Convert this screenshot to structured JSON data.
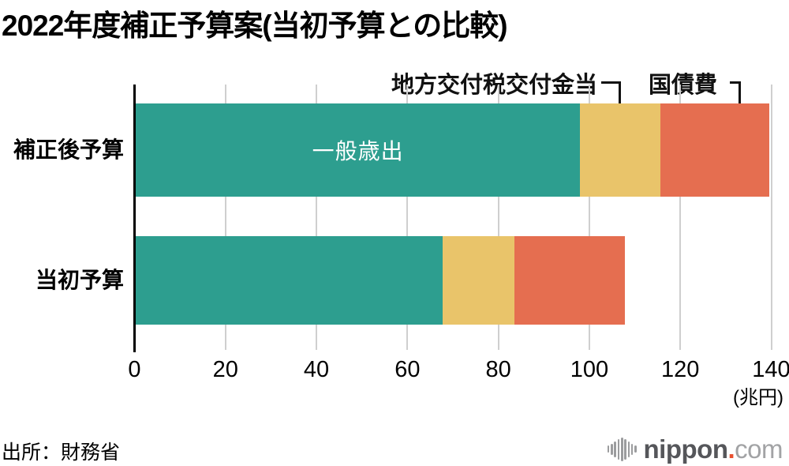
{
  "title": "2022年度補正予算案(当初予算との比較)",
  "source": "出所：財務省",
  "logo": {
    "main": "nippon",
    "dot": ".",
    "suffix": "com",
    "icon": "soundwave-bars-icon"
  },
  "colors": {
    "general_expenditure": "#2d9e8f",
    "local_allocation_tax": "#e9c46a",
    "national_debt_service": "#e56e50",
    "gridline": "#cfcfcf",
    "axis": "#000000",
    "logo_dark": "#55565a",
    "logo_light": "#a2a3a5",
    "logo_dot": "#e9502f"
  },
  "chart_data": {
    "type": "bar",
    "orientation": "horizontal-stacked",
    "title": "2022年度補正予算案(当初予算との比較)",
    "categories": [
      "補正後予算",
      "当初予算"
    ],
    "series": [
      {
        "name": "一般歳出",
        "color": "#2d9e8f",
        "values": [
          97.7,
          67.4
        ]
      },
      {
        "name": "地方交付税交付金当",
        "color": "#e9c46a",
        "values": [
          17.7,
          15.9
        ]
      },
      {
        "name": "国債費",
        "color": "#e56e50",
        "values": [
          23.9,
          24.3
        ]
      }
    ],
    "xlim": [
      0,
      140
    ],
    "xticks": [
      0,
      20,
      40,
      60,
      80,
      100,
      120,
      140
    ],
    "unit_label": "(兆円)",
    "grid": "vertical-light-gray",
    "legend_position": "none",
    "in_bar_label": {
      "text": "一般歳出",
      "row": 0,
      "segment": 0
    },
    "annotations": [
      {
        "text": "地方交付税交付金当",
        "target_series": "地方交付税交付金当"
      },
      {
        "text": "国債費",
        "target_series": "国債費"
      }
    ]
  }
}
